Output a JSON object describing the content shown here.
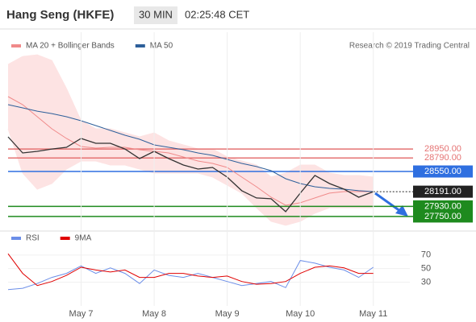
{
  "chart_data": [
    {
      "type": "line",
      "title": "Hang Seng (HKFE)",
      "interval": "30 MIN",
      "time": "02:25:48 CET",
      "credit": "Research © 2019 Trading Central",
      "xlim": [
        0,
        5.5
      ],
      "ylim": [
        27520,
        30740
      ],
      "x": [
        0,
        0.2,
        0.4,
        0.6,
        0.8,
        1.0,
        1.2,
        1.4,
        1.6,
        1.8,
        2.0,
        2.2,
        2.4,
        2.6,
        2.8,
        3.0,
        3.2,
        3.4,
        3.6,
        3.8,
        4.0,
        4.2,
        4.4,
        4.6,
        4.8,
        5.0
      ],
      "close": {
        "color": "#333333",
        "values": [
          29166,
          28880,
          28908,
          28950,
          28980,
          29137,
          29051,
          29051,
          28950,
          28780,
          28908,
          28780,
          28665,
          28594,
          28622,
          28450,
          28208,
          28080,
          28065,
          27836,
          28165,
          28480,
          28336,
          28236,
          28093,
          28191
        ]
      },
      "series": [
        {
          "name": "MA 20 + Bollinger Bands",
          "color": "#f08a8a",
          "band_color": "#fde3e3",
          "values": [
            29881,
            29738,
            29523,
            29309,
            29137,
            28994,
            28966,
            28980,
            28980,
            28937,
            28908,
            28880,
            28808,
            28737,
            28694,
            28622,
            28450,
            28279,
            28093,
            27950,
            27993,
            28079,
            28165,
            28193,
            28193,
            28193
          ],
          "upper": [
            30453,
            30596,
            30624,
            30524,
            30024,
            29452,
            29309,
            29309,
            29237,
            29166,
            29237,
            29094,
            29023,
            28951,
            28951,
            28808,
            28737,
            28665,
            28451,
            28522,
            28665,
            28665,
            28522,
            28479,
            28479,
            28451
          ],
          "lower": [
            29309,
            28522,
            28236,
            28336,
            28594,
            28737,
            28737,
            28665,
            28665,
            28594,
            28522,
            28522,
            28522,
            28522,
            28451,
            28308,
            28165,
            27907,
            27664,
            27593,
            27664,
            27807,
            27907,
            27907,
            27907,
            27907
          ]
        },
        {
          "name": "MA 50",
          "color": "#2d5f9a",
          "values": [
            29738,
            29681,
            29623,
            29580,
            29523,
            29452,
            29366,
            29280,
            29194,
            29123,
            29023,
            28980,
            28937,
            28880,
            28837,
            28765,
            28694,
            28637,
            28565,
            28422,
            28336,
            28279,
            28250,
            28236,
            28208,
            28193
          ]
        }
      ],
      "levels": [
        {
          "value": 28950,
          "label": "28950.00",
          "color": "#e57373"
        },
        {
          "value": 28790,
          "label": "28790.00",
          "color": "#e57373"
        },
        {
          "value": 28550,
          "label": "28550.00",
          "color": "#2f6fe0"
        },
        {
          "value": 28191,
          "label": "28191.00",
          "color": "#222222",
          "dashed": true
        },
        {
          "value": 27930,
          "label": "27930.00",
          "color": "#1e8a1e"
        },
        {
          "value": 27750,
          "label": "27750.00",
          "color": "#1e8a1e"
        }
      ]
    },
    {
      "type": "line",
      "xlim": [
        0,
        5.5
      ],
      "ylim": [
        -5,
        90
      ],
      "grid": true,
      "x": [
        0,
        0.2,
        0.4,
        0.6,
        0.8,
        1.0,
        1.2,
        1.4,
        1.6,
        1.8,
        2.0,
        2.2,
        2.4,
        2.6,
        2.8,
        3.0,
        3.2,
        3.4,
        3.6,
        3.8,
        4.0,
        4.2,
        4.4,
        4.6,
        4.8,
        5.0
      ],
      "xticks": [
        {
          "value": 1,
          "label": "May 7"
        },
        {
          "value": 2,
          "label": "May 8"
        },
        {
          "value": 3,
          "label": "May 9"
        },
        {
          "value": 4,
          "label": "May 10"
        },
        {
          "value": 5,
          "label": "May 11"
        }
      ],
      "yticks": [
        70,
        50,
        30
      ],
      "series": [
        {
          "name": "RSI",
          "color": "#6b8ee8",
          "values": [
            19,
            21,
            28,
            37,
            43,
            54,
            43,
            51,
            43,
            28,
            48,
            40,
            37,
            43,
            37,
            31,
            25,
            28,
            31,
            22,
            62,
            58,
            52,
            48,
            37,
            52
          ]
        },
        {
          "name": "9MA",
          "color": "#e00000",
          "values": [
            72,
            43,
            25,
            31,
            40,
            52,
            48,
            45,
            48,
            37,
            37,
            43,
            43,
            39,
            37,
            39,
            31,
            27,
            28,
            31,
            43,
            52,
            54,
            51,
            43,
            43
          ]
        }
      ]
    }
  ]
}
